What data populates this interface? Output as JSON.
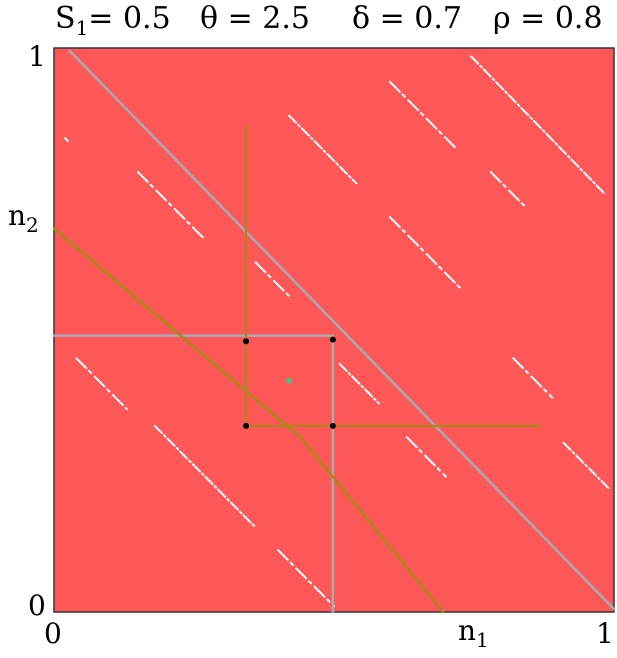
{
  "header": {
    "s1": {
      "sym": "S",
      "sub": "1",
      "val": "= 0.5"
    },
    "theta": "θ = 2.5",
    "delta": "δ = 0.7",
    "rho": "ρ = 0.8"
  },
  "axes": {
    "x_min": "0",
    "x_max": "1",
    "y_min": "0",
    "y_max": "1",
    "x_label": {
      "sym": "n",
      "sub": "1"
    },
    "y_label": {
      "sym": "n",
      "sub": "2"
    }
  },
  "colors": {
    "region": "#fe5757",
    "frame": "#333333",
    "gray_line": "#a9a9b3",
    "olive_line": "#a58a13",
    "streak": "#ffffff",
    "point": "#000000",
    "green_point": "#4cc28a"
  },
  "diagram": {
    "domain": {
      "x": [
        0,
        1
      ],
      "y": [
        0,
        1
      ]
    },
    "gray_diagonal": [
      [
        0.028,
        0.995
      ],
      [
        1.0,
        0.005
      ]
    ],
    "gray_horizontal": [
      [
        0.0,
        0.49
      ],
      [
        0.498,
        0.49
      ]
    ],
    "gray_vertical": [
      [
        0.498,
        0.49
      ],
      [
        0.498,
        0.0
      ]
    ],
    "olive_diagonal": [
      [
        0.0,
        0.68
      ],
      [
        0.44,
        0.31
      ]
    ],
    "olive_segment": [
      [
        0.44,
        0.31
      ],
      [
        0.695,
        0.0
      ]
    ],
    "olive_vertical": [
      [
        0.343,
        0.862
      ],
      [
        0.343,
        0.33
      ]
    ],
    "olive_horizontal": [
      [
        0.343,
        0.33
      ],
      [
        0.87,
        0.33
      ]
    ],
    "black_points": [
      [
        0.343,
        0.48
      ],
      [
        0.498,
        0.483
      ],
      [
        0.343,
        0.33
      ],
      [
        0.498,
        0.33
      ]
    ],
    "green_point": [
      0.42,
      0.41
    ],
    "streaks": [
      [
        [
          0.745,
          0.985
        ],
        [
          0.985,
          0.74
        ]
      ],
      [
        [
          0.6,
          0.94
        ],
        [
          0.72,
          0.82
        ]
      ],
      [
        [
          0.78,
          0.78
        ],
        [
          0.84,
          0.72
        ]
      ],
      [
        [
          0.42,
          0.88
        ],
        [
          0.54,
          0.76
        ]
      ],
      [
        [
          0.6,
          0.7
        ],
        [
          0.73,
          0.57
        ]
      ],
      [
        [
          0.82,
          0.45
        ],
        [
          0.89,
          0.38
        ]
      ],
      [
        [
          0.91,
          0.3
        ],
        [
          0.99,
          0.22
        ]
      ],
      [
        [
          0.15,
          0.78
        ],
        [
          0.27,
          0.66
        ]
      ],
      [
        [
          0.36,
          0.62
        ],
        [
          0.42,
          0.56
        ]
      ],
      [
        [
          0.51,
          0.44
        ],
        [
          0.58,
          0.37
        ]
      ],
      [
        [
          0.63,
          0.31
        ],
        [
          0.7,
          0.24
        ]
      ],
      [
        [
          0.04,
          0.45
        ],
        [
          0.13,
          0.36
        ]
      ],
      [
        [
          0.18,
          0.33
        ],
        [
          0.36,
          0.15
        ]
      ],
      [
        [
          0.4,
          0.11
        ],
        [
          0.5,
          0.01
        ]
      ],
      [
        [
          0.02,
          0.84
        ],
        [
          0.025,
          0.835
        ]
      ]
    ]
  }
}
